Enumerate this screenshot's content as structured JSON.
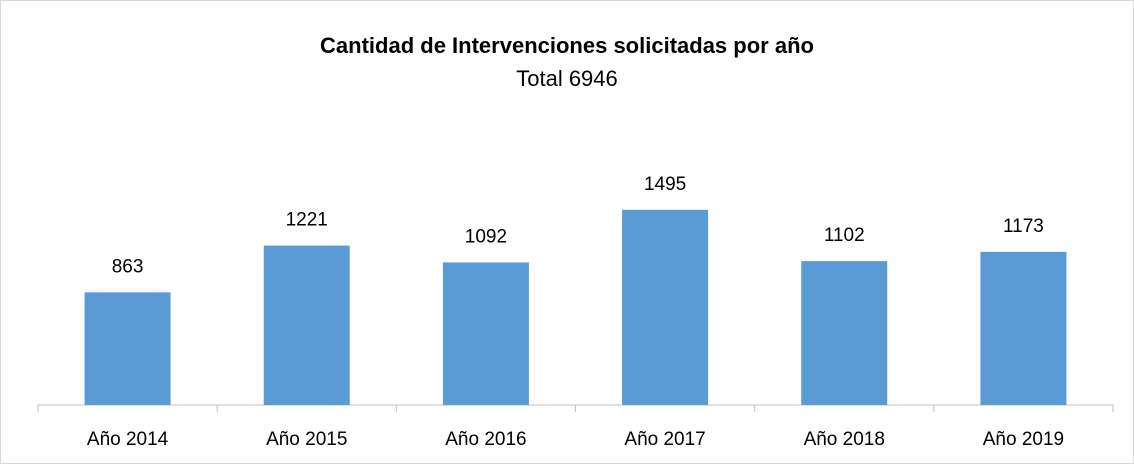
{
  "chart_data": {
    "type": "bar",
    "title": "Cantidad de Intervenciones solicitadas por año",
    "subtitle": "Total 6946",
    "categories": [
      "Año 2014",
      "Año 2015",
      "Año 2016",
      "Año 2017",
      "Año 2018",
      "Año 2019"
    ],
    "values": [
      863,
      1221,
      1092,
      1495,
      1102,
      1173
    ],
    "color": "#5b9bd5",
    "ylim": [
      0,
      1800
    ]
  }
}
